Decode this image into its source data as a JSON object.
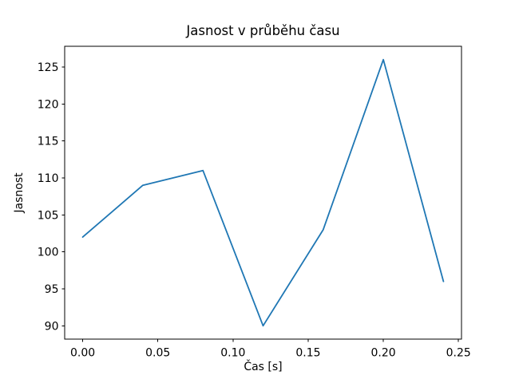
{
  "chart_data": {
    "type": "line",
    "title": "Jasnost v průběhu času",
    "xlabel": "Čas [s]",
    "ylabel": "Jasnost",
    "x": [
      0.0,
      0.04,
      0.08,
      0.12,
      0.16,
      0.2,
      0.24
    ],
    "series": [
      {
        "name": "Jasnost",
        "values": [
          102,
          109,
          111,
          90,
          103,
          126,
          96
        ]
      }
    ],
    "xlim": [
      -0.012,
      0.252
    ],
    "ylim": [
      88.2,
      127.8
    ],
    "xticks": {
      "values": [
        0.0,
        0.05,
        0.1,
        0.15,
        0.2,
        0.25
      ],
      "labels": [
        "0.00",
        "0.05",
        "0.10",
        "0.15",
        "0.20",
        "0.25"
      ]
    },
    "yticks": {
      "values": [
        90,
        95,
        100,
        105,
        110,
        115,
        120,
        125
      ],
      "labels": [
        "90",
        "95",
        "100",
        "105",
        "110",
        "115",
        "120",
        "125"
      ]
    },
    "grid": false,
    "legend": null,
    "line_color": "#1f77b4",
    "spine_color": "#000000",
    "background_color": "#ffffff"
  }
}
